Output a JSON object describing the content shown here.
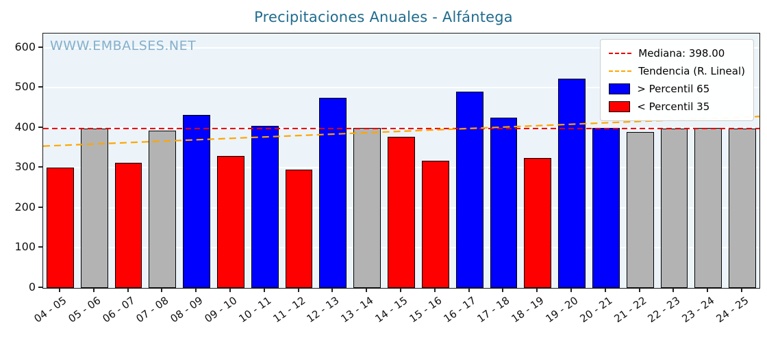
{
  "watermark": "WWW.EMBALSES.NET",
  "chart_data": {
    "type": "bar",
    "title": "Precipitaciones Anuales - Alfántega",
    "xlabel": "",
    "ylabel": "",
    "categories": [
      "04 - 05",
      "05 - 06",
      "06 - 07",
      "07 - 08",
      "08 - 09",
      "09 - 10",
      "10 - 11",
      "11 - 12",
      "12 - 13",
      "13 - 14",
      "14 - 15",
      "15 - 16",
      "16 - 17",
      "17 - 18",
      "18 - 19",
      "19 - 20",
      "20 - 21",
      "21 - 22",
      "22 - 23",
      "23 - 24",
      "24 - 25"
    ],
    "values": [
      300,
      398,
      312,
      392,
      432,
      330,
      405,
      295,
      475,
      400,
      378,
      318,
      490,
      425,
      325,
      522,
      400,
      390,
      398,
      400,
      398
    ],
    "colors": [
      "red",
      "gray",
      "red",
      "gray",
      "blue",
      "red",
      "blue",
      "red",
      "blue",
      "gray",
      "red",
      "red",
      "blue",
      "blue",
      "red",
      "blue",
      "blue",
      "gray",
      "gray",
      "gray",
      "gray"
    ],
    "bar_colors": {
      "blue": "#0000ff",
      "red": "#ff0000",
      "gray": "#b3b3b3"
    },
    "ylim": [
      0,
      635
    ],
    "yticks": [
      0,
      100,
      200,
      300,
      400,
      500,
      600
    ],
    "grid": true,
    "median": 398,
    "median_color": "#e60000",
    "trend": {
      "start": 354,
      "end": 428
    },
    "trend_color": "#ffa500",
    "legend_position": "upper right",
    "legend": [
      {
        "label": "Mediana: 398.00",
        "type": "line",
        "color": "#e60000"
      },
      {
        "label": "Tendencia (R. Lineal)",
        "type": "line",
        "color": "#ffa500"
      },
      {
        "label": " > Percentil 65",
        "type": "patch",
        "color": "#0000ff"
      },
      {
        "label": " < Percentil 35",
        "type": "patch",
        "color": "#ff0000"
      }
    ]
  }
}
